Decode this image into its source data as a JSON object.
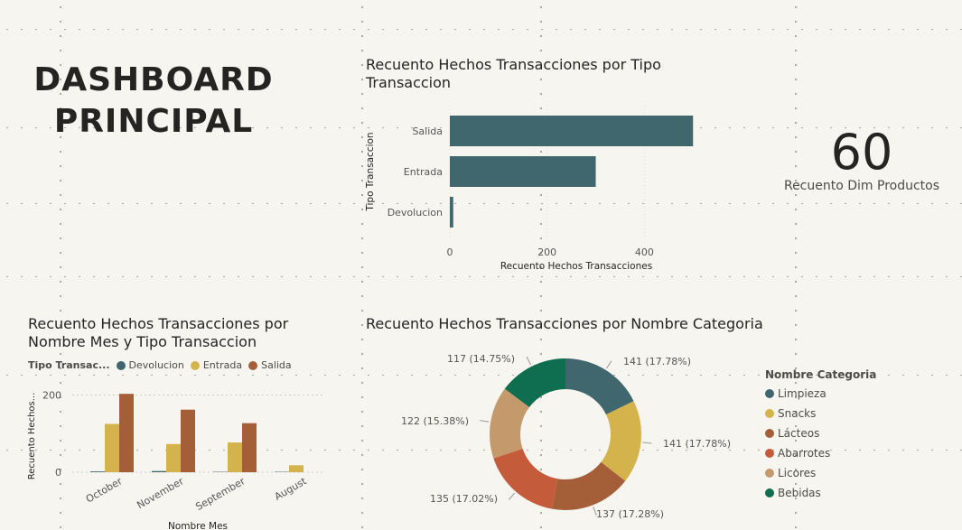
{
  "page_title": "DASHBOARD\nPRINCIPAL",
  "kpi": {
    "value": "60",
    "label": "Recuento Dim Productos"
  },
  "chart_data": [
    {
      "type": "bar",
      "orientation": "horizontal",
      "title": "Recuento Hechos Transacciones por Tipo Transaccion",
      "xlabel": "Recuento Hechos Transacciones",
      "ylabel": "Tipo Transaccion",
      "categories": [
        "Salida",
        "Entrada",
        "Devolucion"
      ],
      "values": [
        500,
        300,
        7
      ],
      "xlim": [
        0,
        520
      ],
      "xticks": [
        "0",
        "200",
        "400"
      ],
      "color": "#41676e",
      "grid": true
    },
    {
      "type": "bar",
      "title": "Recuento Hechos Transacciones por Nombre Mes y Tipo Transaccion",
      "xlabel": "Nombre Mes",
      "ylabel": "Recuento Hechos...",
      "legend_title": "Tipo Transac...",
      "categories": [
        "October",
        "November",
        "September",
        "August"
      ],
      "series": [
        {
          "name": "Devolucion",
          "color": "#41676e",
          "values": [
            2,
            3,
            1,
            1
          ]
        },
        {
          "name": "Entrada",
          "color": "#d4b24c",
          "values": [
            125,
            73,
            77,
            18
          ]
        },
        {
          "name": "Salida",
          "color": "#a55f38",
          "values": [
            203,
            162,
            127,
            0
          ]
        }
      ],
      "ylim": [
        0,
        250
      ],
      "yticks": [
        "0",
        "200"
      ],
      "grid": true
    },
    {
      "type": "pie",
      "donut": true,
      "title": "Recuento Hechos Transacciones por Nombre Categoria",
      "legend_title": "Nombre Categoria",
      "slices": [
        {
          "label": "Limpieza",
          "value": 141,
          "text": "141 (17.78%)",
          "color": "#41676e"
        },
        {
          "label": "Snacks",
          "value": 141,
          "text": "141 (17.78%)",
          "color": "#d4b24c"
        },
        {
          "label": "Lácteos",
          "value": 137,
          "text": "137 (17.28%)",
          "color": "#a55f38"
        },
        {
          "label": "Abarrotes",
          "value": 135,
          "text": "135 (17.02%)",
          "color": "#c45c3c"
        },
        {
          "label": "Licores",
          "value": 122,
          "text": "122 (15.38%)",
          "color": "#c49a6c"
        },
        {
          "label": "Bebidas",
          "value": 117,
          "text": "117 (14.75%)",
          "color": "#0f6e4f"
        }
      ]
    }
  ]
}
